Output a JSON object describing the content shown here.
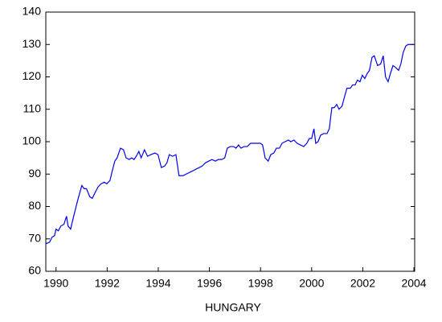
{
  "chart_data": {
    "type": "line",
    "x_label": "HUNGARY",
    "x": [
      1989.6,
      1989.75,
      1989.84,
      1989.94,
      1990.0,
      1990.09,
      1990.19,
      1990.31,
      1990.41,
      1990.47,
      1990.57,
      1990.69,
      1990.85,
      1991.01,
      1991.1,
      1991.19,
      1991.32,
      1991.42,
      1991.51,
      1991.64,
      1991.76,
      1991.89,
      1991.98,
      1992.11,
      1992.2,
      1992.3,
      1992.39,
      1992.52,
      1992.64,
      1992.74,
      1992.86,
      1992.96,
      1993.05,
      1993.14,
      1993.24,
      1993.33,
      1993.46,
      1993.58,
      1993.71,
      1993.87,
      1993.99,
      1994.12,
      1994.25,
      1994.34,
      1994.43,
      1994.56,
      1994.69,
      1994.81,
      1994.97,
      1995.09,
      1995.22,
      1995.35,
      1995.47,
      1995.6,
      1995.72,
      1995.85,
      1995.97,
      1996.1,
      1996.23,
      1996.35,
      1996.48,
      1996.6,
      1996.7,
      1996.82,
      1996.95,
      1997.04,
      1997.14,
      1997.23,
      1997.36,
      1997.48,
      1997.61,
      1997.74,
      1997.86,
      1997.99,
      1998.08,
      1998.18,
      1998.3,
      1998.4,
      1998.52,
      1998.62,
      1998.74,
      1998.84,
      1998.96,
      1999.09,
      1999.18,
      1999.31,
      1999.43,
      1999.56,
      1999.69,
      1999.81,
      1999.91,
      2000.0,
      2000.09,
      2000.16,
      2000.25,
      2000.35,
      2000.47,
      2000.6,
      2000.69,
      2000.79,
      2000.88,
      2000.98,
      2001.07,
      2001.19,
      2001.29,
      2001.38,
      2001.51,
      2001.6,
      2001.7,
      2001.79,
      2001.89,
      2001.98,
      2002.08,
      2002.17,
      2002.26,
      2002.36,
      2002.45,
      2002.58,
      2002.7,
      2002.8,
      2002.89,
      2002.99,
      2003.08,
      2003.18,
      2003.27,
      2003.4,
      2003.49,
      2003.58,
      2003.68,
      2003.77,
      2003.9,
      2003.99
    ],
    "series": [
      {
        "name": "HUNGARY",
        "color": "#0000ee",
        "values": [
          68.5,
          69,
          70.5,
          71,
          73,
          72.5,
          74,
          74.5,
          77,
          74,
          73,
          77,
          82,
          86.5,
          85.5,
          85.5,
          83,
          82.5,
          84,
          86,
          87,
          87.5,
          87,
          88,
          91,
          94,
          95,
          98,
          97.5,
          95,
          94.5,
          95,
          94.5,
          95.5,
          97,
          95,
          97.5,
          95.5,
          96,
          96.5,
          96,
          92,
          92.5,
          93.5,
          96,
          95.5,
          96,
          89.5,
          89.5,
          90,
          90.5,
          91,
          91.5,
          92,
          92.5,
          93.5,
          94,
          94.5,
          94,
          94.5,
          94.5,
          95,
          98,
          98.5,
          98.5,
          98,
          99,
          98,
          98.5,
          98.5,
          99.5,
          99.5,
          99.5,
          99.5,
          99,
          95,
          94,
          96,
          96.5,
          98,
          98,
          99.5,
          100,
          100.5,
          100,
          100.5,
          99.5,
          99,
          98.5,
          99.5,
          101,
          101,
          104,
          99.5,
          100,
          102,
          102.5,
          102.5,
          104,
          110.5,
          110.5,
          111.5,
          110,
          111,
          114,
          116.5,
          116.5,
          117.5,
          117.5,
          119,
          118.5,
          120.5,
          119.5,
          121,
          122,
          126,
          126.5,
          123.5,
          124,
          126.5,
          120,
          118.5,
          121,
          123.5,
          123,
          122,
          124,
          127.5,
          129.5,
          130,
          130,
          130
        ]
      }
    ],
    "xlim": [
      1989.6,
      2004.03
    ],
    "xticks": [
      1990,
      1992,
      1994,
      1996,
      1998,
      2000,
      2002,
      2004
    ],
    "ylim": [
      60,
      140
    ],
    "yticks": [
      60,
      70,
      80,
      90,
      100,
      110,
      120,
      130,
      140
    ]
  }
}
